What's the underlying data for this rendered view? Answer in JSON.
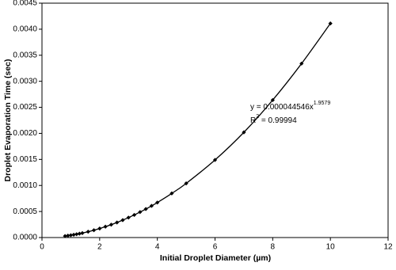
{
  "chart_data": {
    "type": "scatter",
    "x_label": "Initial Droplet Diameter (µm)",
    "y_label": "Droplet Evaporation Time (sec)",
    "x": [
      0.8,
      0.9,
      1.0,
      1.1,
      1.2,
      1.3,
      1.4,
      1.6,
      1.8,
      2.0,
      2.2,
      2.4,
      2.6,
      2.8,
      3.0,
      3.2,
      3.4,
      3.6,
      3.8,
      4.0,
      4.5,
      5,
      6,
      7,
      8,
      9,
      10
    ],
    "values": [
      2.9e-05,
      3.6e-05,
      4.5e-05,
      5.4e-05,
      6.4e-05,
      7.4e-05,
      8.6e-05,
      0.000112,
      0.000141,
      0.000173,
      0.000209,
      0.000247,
      0.000289,
      0.000334,
      0.000383,
      0.000434,
      0.000489,
      0.000547,
      0.000608,
      0.000672,
      0.000847,
      0.00104,
      0.00149,
      0.00202,
      0.00264,
      0.00334,
      0.00411
    ],
    "color": "#000000",
    "xlim": [
      0,
      12
    ],
    "xticks": [
      0,
      2,
      4,
      6,
      8,
      10,
      12
    ],
    "ylim": [
      0,
      0.0045
    ],
    "yticks": [
      {
        "value": 0,
        "label": "0.0000"
      },
      {
        "value": 0.0005,
        "label": "0.0005"
      },
      {
        "value": 0.001,
        "label": "0.0010"
      },
      {
        "value": 0.0015,
        "label": "0.0015"
      },
      {
        "value": 0.002,
        "label": "0.0020"
      },
      {
        "value": 0.0025,
        "label": "0.0025"
      },
      {
        "value": 0.003,
        "label": "0.0030"
      },
      {
        "value": 0.0035,
        "label": "0.0035"
      },
      {
        "value": 0.004,
        "label": "0.0040"
      },
      {
        "value": 0.0045,
        "label": "0.0045"
      }
    ],
    "grid": false,
    "annotations": {
      "equation": "y = 0.000044546x",
      "exponent": "1.9579",
      "r": "R",
      "r_exponent": "2",
      "r_value": " = 0.99994"
    }
  }
}
